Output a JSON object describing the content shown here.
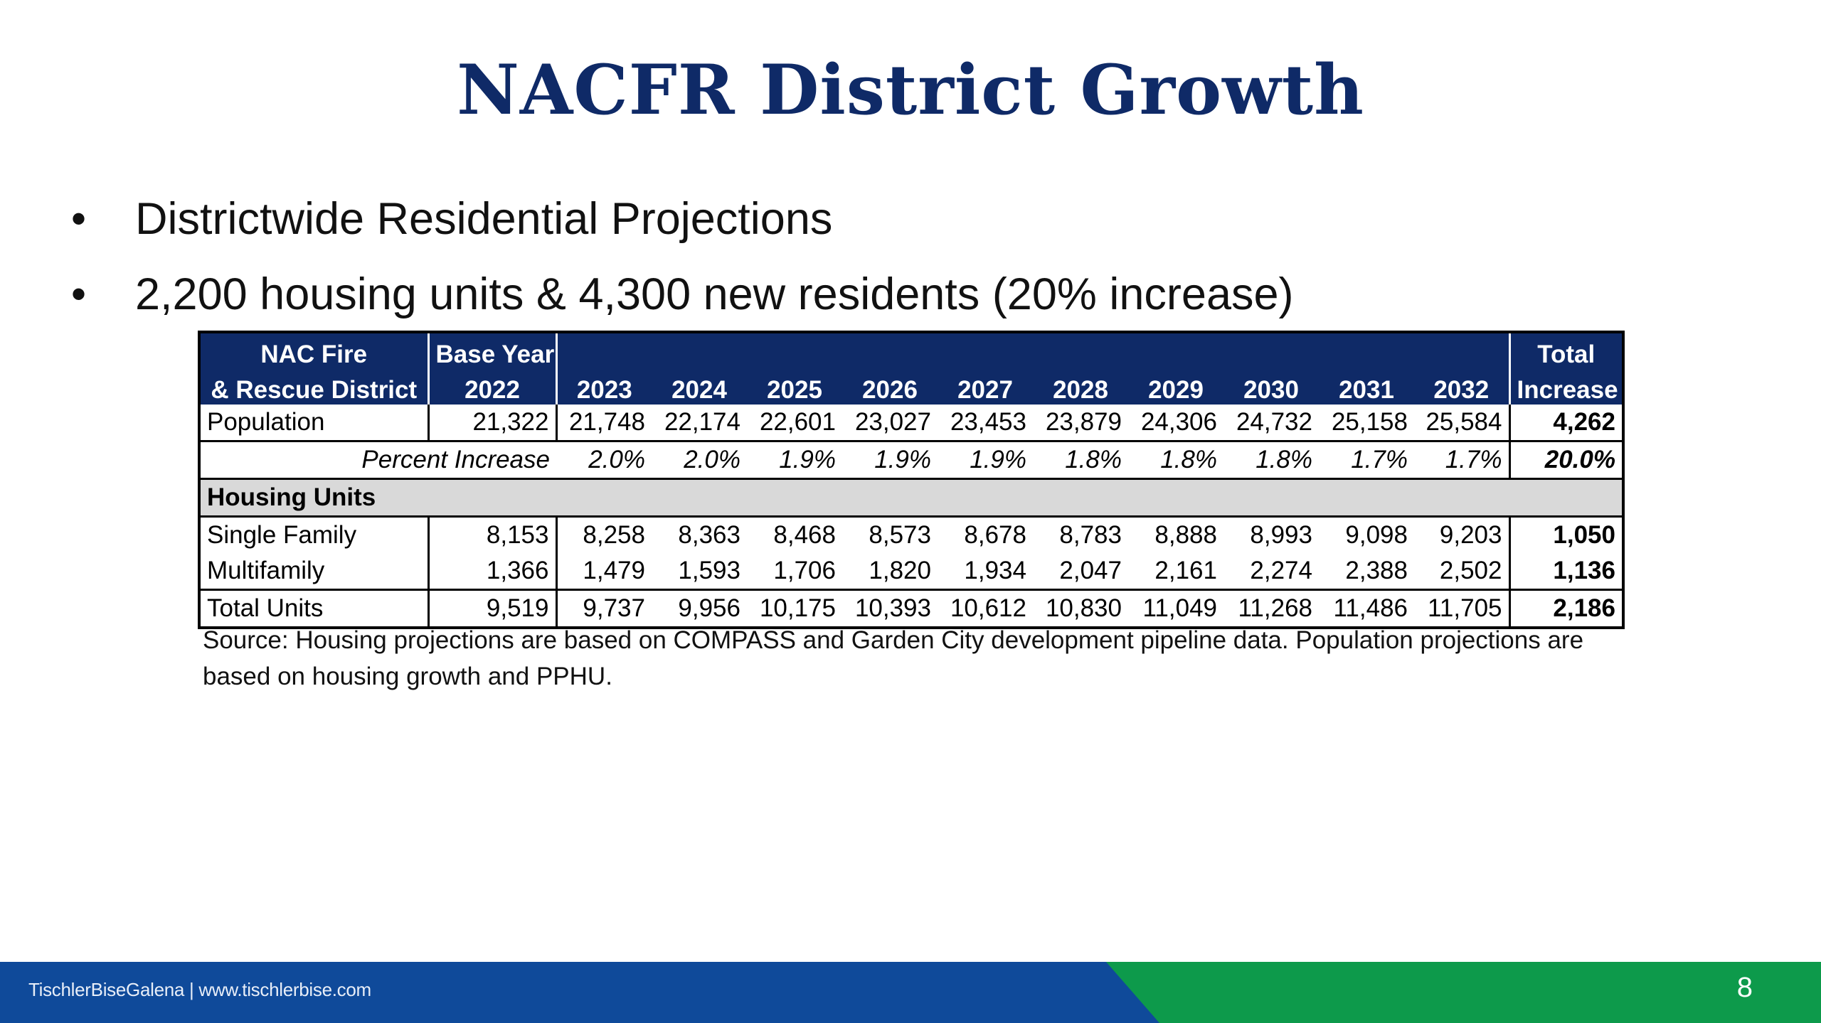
{
  "slide": {
    "title": "NACFR District Growth",
    "bullets": [
      "Districtwide Residential Projections",
      "2,200 housing units & 4,300 new residents (20% increase)"
    ],
    "source": "Source: Housing projections are based on COMPASS and Garden City development pipeline data. Population projections are based on housing growth and PPHU.",
    "page_number": "8"
  },
  "table": {
    "header_top": {
      "district_line1": "NAC Fire",
      "base_line1": "Base Year",
      "total_line1": "Total"
    },
    "header_bottom": {
      "district_line2": "& Rescue District",
      "base_line2": "2022",
      "years": [
        "2023",
        "2024",
        "2025",
        "2026",
        "2027",
        "2028",
        "2029",
        "2030",
        "2031",
        "2032"
      ],
      "total_line2": "Increase"
    },
    "population": {
      "label": "Population",
      "base": "21,322",
      "values": [
        "21,748",
        "22,174",
        "22,601",
        "23,027",
        "23,453",
        "23,879",
        "24,306",
        "24,732",
        "25,158",
        "25,584"
      ],
      "total": "4,262"
    },
    "percent_increase": {
      "label": "Percent Increase",
      "values": [
        "2.0%",
        "2.0%",
        "1.9%",
        "1.9%",
        "1.9%",
        "1.8%",
        "1.8%",
        "1.8%",
        "1.7%",
        "1.7%"
      ],
      "total": "20.0%"
    },
    "housing_units_label": "Housing Units",
    "single_family": {
      "label": "Single Family",
      "base": "8,153",
      "values": [
        "8,258",
        "8,363",
        "8,468",
        "8,573",
        "8,678",
        "8,783",
        "8,888",
        "8,993",
        "9,098",
        "9,203"
      ],
      "total": "1,050"
    },
    "multifamily": {
      "label": "Multifamily",
      "base": "1,366",
      "values": [
        "1,479",
        "1,593",
        "1,706",
        "1,820",
        "1,934",
        "2,047",
        "2,161",
        "2,274",
        "2,388",
        "2,502"
      ],
      "total": "1,136"
    },
    "total_units": {
      "label": "Total Units",
      "base": "9,519",
      "values": [
        "9,737",
        "9,956",
        "10,175",
        "10,393",
        "10,612",
        "10,830",
        "11,049",
        "11,268",
        "11,486",
        "11,705"
      ],
      "total": "2,186"
    }
  },
  "footer": {
    "brand": "TischlerBiseGalena  |  www.tischlerbise.com",
    "colors": {
      "blue": "#0f4a9a",
      "green": "#0d9a4b",
      "navy": "#0f2a67"
    }
  }
}
